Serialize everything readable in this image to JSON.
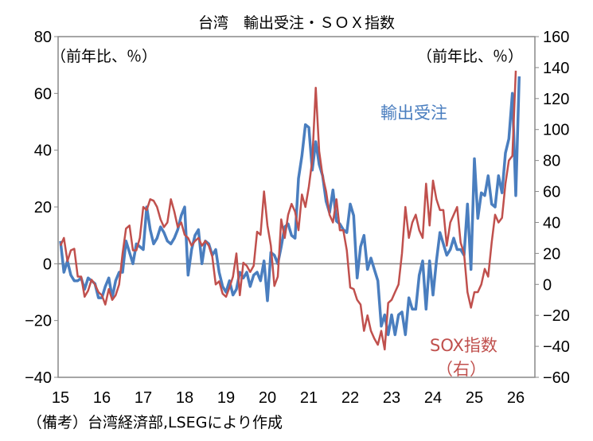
{
  "chart_data": {
    "type": "line",
    "title": "台湾　輸出受注・ＳＯＸ指数",
    "left_unit": "（前年比、％）",
    "right_unit": "（前年比、％）",
    "note": "（備考）台湾経済部,LSEGにより作成",
    "x_start": "2015-01",
    "frequency": "monthly",
    "x_ticks": [
      "15",
      "16",
      "17",
      "18",
      "19",
      "20",
      "21",
      "22",
      "23",
      "24",
      "25",
      "26"
    ],
    "left_axis": {
      "range": [
        -40,
        80
      ],
      "ticks": [
        "80",
        "60",
        "40",
        "20",
        "0",
        "-20",
        "-40"
      ]
    },
    "right_axis": {
      "range": [
        -60,
        160
      ],
      "ticks": [
        "160",
        "140",
        "120",
        "100",
        "80",
        "60",
        "40",
        "20",
        "0",
        "-20",
        "-40",
        "-60"
      ]
    },
    "series": [
      {
        "name": "輸出受注",
        "axis": "left",
        "color": "#4a7ebf",
        "values": [
          8,
          -3,
          1,
          -4,
          -6,
          -6,
          -5,
          -9,
          -5,
          -6,
          -7,
          -12,
          -12,
          -8,
          -5,
          -12,
          -6,
          -3,
          -3,
          8,
          4,
          0,
          7,
          6,
          5,
          20,
          12,
          7,
          9,
          13,
          11,
          8,
          7,
          9,
          12,
          17,
          20,
          -4,
          5,
          10,
          12,
          0,
          8,
          7,
          3,
          5,
          -3,
          -8,
          -10,
          -6,
          -11,
          -9,
          -3,
          -5,
          -3,
          -8,
          -4,
          -3,
          -6,
          1,
          -13,
          4,
          3,
          0,
          6,
          13,
          14,
          10,
          9,
          30,
          38,
          49,
          48,
          33,
          43,
          35,
          31,
          22,
          18,
          26,
          15,
          14,
          12,
          11,
          21,
          17,
          -5,
          6,
          10,
          -2,
          2,
          -2,
          -6,
          -22,
          -18,
          -25,
          -18,
          -25,
          -18,
          -17,
          -25,
          -12,
          -16,
          -16,
          -4,
          1,
          -16,
          1,
          -11,
          1,
          11,
          7,
          3,
          5,
          9,
          5,
          5,
          3,
          21,
          -2,
          37,
          16,
          25,
          24,
          31,
          21,
          20,
          31,
          25,
          39,
          44,
          60,
          24,
          66
        ]
      },
      {
        "name": "SOX指数",
        "label_suffix": "（右）",
        "axis": "right",
        "color": "#c0504d",
        "values": [
          25,
          30,
          15,
          22,
          23,
          5,
          5,
          -8,
          -4,
          3,
          0,
          -5,
          -7,
          -13,
          -3,
          -10,
          -7,
          0,
          20,
          36,
          38,
          22,
          22,
          30,
          50,
          48,
          55,
          54,
          50,
          42,
          37,
          40,
          55,
          47,
          37,
          40,
          32,
          30,
          25,
          28,
          30,
          25,
          28,
          25,
          18,
          0,
          2,
          -6,
          -8,
          -2,
          5,
          20,
          -7,
          14,
          12,
          8,
          12,
          34,
          32,
          60,
          38,
          25,
          -1,
          5,
          42,
          30,
          45,
          52,
          47,
          35,
          58,
          50,
          63,
          80,
          127,
          86,
          70,
          60,
          45,
          40,
          55,
          35,
          35,
          22,
          -2,
          -3,
          -10,
          -13,
          -30,
          -20,
          -30,
          -35,
          -39,
          -30,
          -42,
          -12,
          -10,
          -5,
          0,
          20,
          50,
          30,
          40,
          45,
          35,
          30,
          65,
          38,
          67,
          55,
          48,
          48,
          25,
          40,
          45,
          50,
          27,
          20,
          -5,
          -15,
          -5,
          -5,
          0,
          10,
          5,
          27,
          45,
          40,
          43,
          65,
          80,
          83,
          138
        ]
      }
    ]
  }
}
